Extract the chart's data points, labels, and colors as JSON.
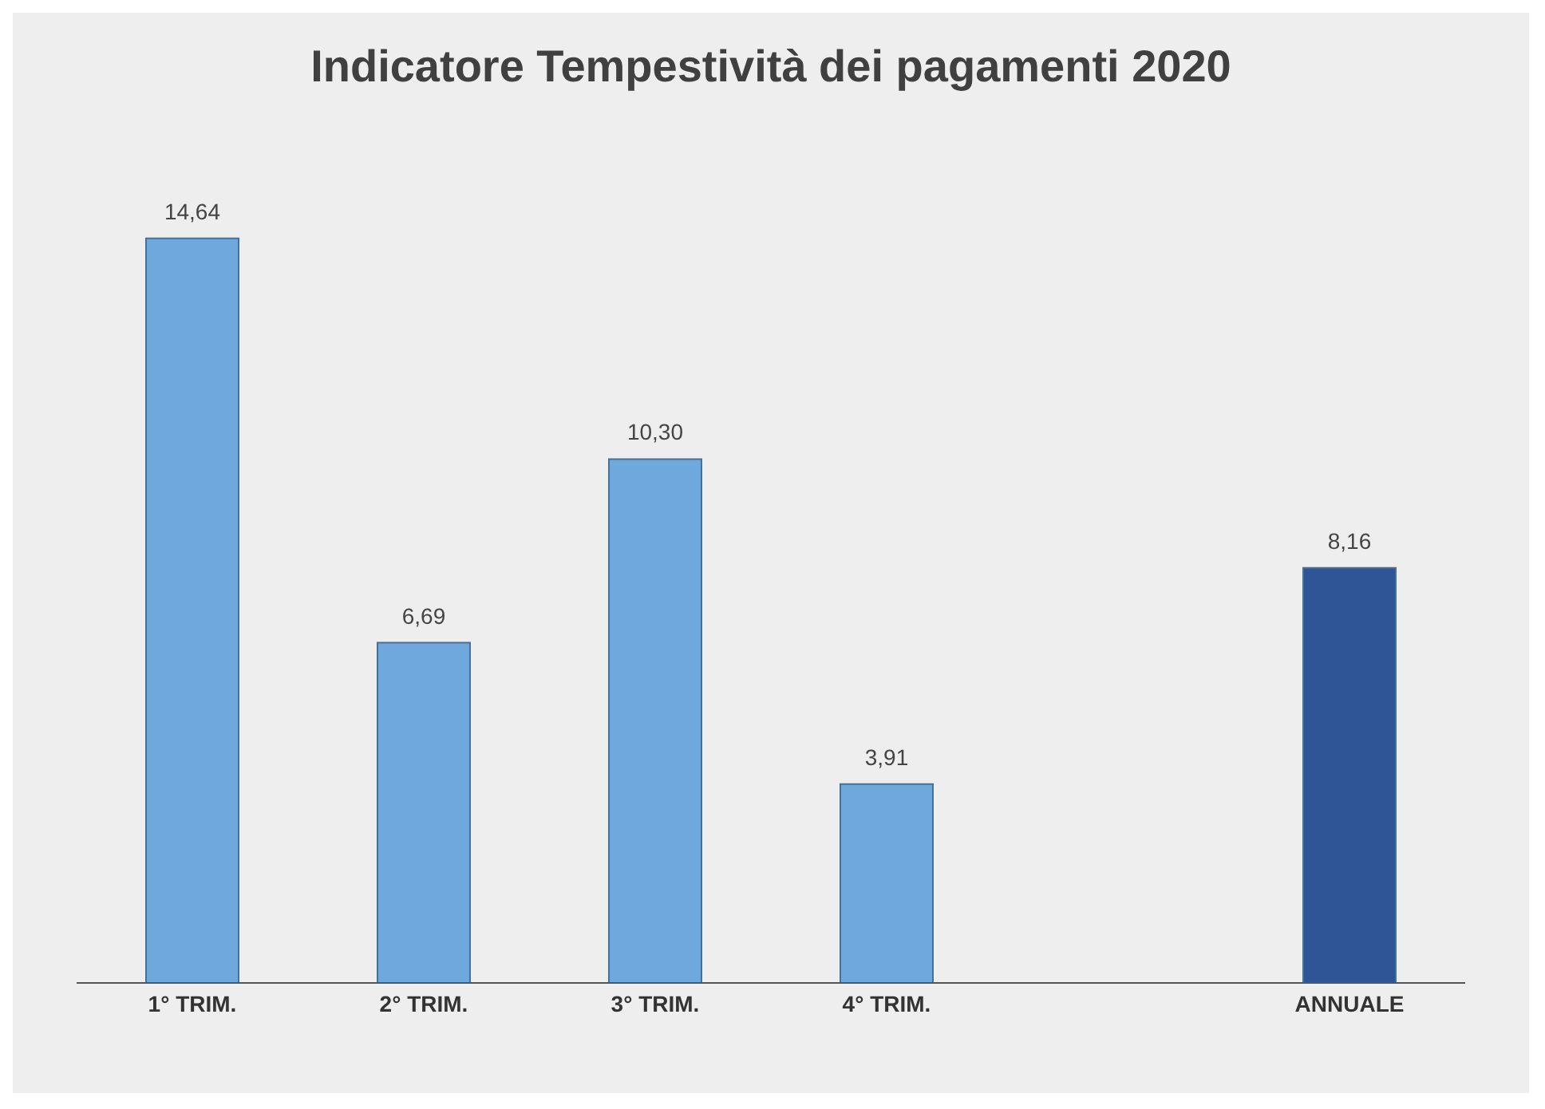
{
  "chart_data": {
    "type": "bar",
    "title": "Indicatore Tempestività dei pagamenti 2020",
    "categories": [
      "1° TRIM.",
      "2° TRIM.",
      "3° TRIM.",
      "4° TRIM.",
      null,
      "ANNUALE"
    ],
    "values": [
      14.64,
      6.69,
      10.3,
      3.91,
      null,
      8.16
    ],
    "value_labels": [
      "14,64",
      "6,69",
      "10,30",
      "3,91",
      null,
      "8,16"
    ],
    "colors": [
      "#6fa8dc",
      "#6fa8dc",
      "#6fa8dc",
      "#6fa8dc",
      "#6fa8dc",
      "#2f5597"
    ]
  }
}
